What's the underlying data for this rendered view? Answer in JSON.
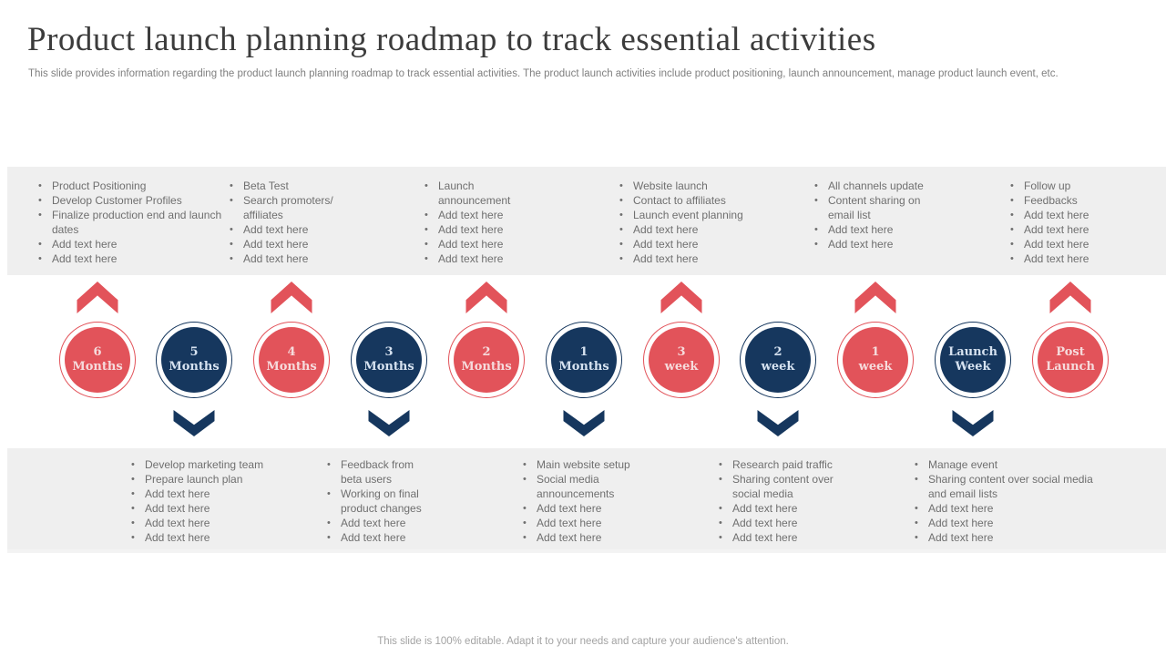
{
  "slide": {
    "title": "Product launch planning roadmap to track essential activities",
    "subtitle": "This slide provides information regarding the product launch planning roadmap to track essential activities. The product launch activities include product positioning, launch announcement, manage product launch event, etc.",
    "footer": "This slide is 100% editable. Adapt it to your needs and capture your audience's attention."
  },
  "colors": {
    "red": "#e2535a",
    "navy": "#16375e",
    "band_gray": "#efefef",
    "bullet_text": "#6f6f6f"
  },
  "top_band": {
    "columns": [
      {
        "items": [
          "Product Positioning",
          "Develop Customer Profiles",
          "Finalize production end and launch dates",
          "Add text here",
          "Add text here"
        ]
      },
      {
        "items": [
          "Beta Test",
          "Search promoters/ affiliates",
          "Add text here",
          "Add text here",
          "Add text here"
        ]
      },
      {
        "items": [
          "Launch announcement",
          "Add text here",
          "Add text here",
          "Add text here",
          "Add text here"
        ]
      },
      {
        "items": [
          "Website launch",
          "Contact to affiliates",
          "Launch event planning",
          "Add text here",
          "Add text here",
          "Add text here"
        ]
      },
      {
        "items": [
          "All channels update",
          "Content sharing on email list",
          "Add text here",
          "Add text here"
        ]
      },
      {
        "items": [
          "Follow up",
          "Feedbacks",
          "Add text here",
          "Add text here",
          "Add text here",
          "Add text here"
        ]
      }
    ]
  },
  "timeline": {
    "circles": [
      {
        "line1": "6",
        "line2": "Months",
        "tone": "red",
        "arrow": "up"
      },
      {
        "line1": "5",
        "line2": "Months",
        "tone": "navy",
        "arrow": "down"
      },
      {
        "line1": "4",
        "line2": "Months",
        "tone": "red",
        "arrow": "up"
      },
      {
        "line1": "3",
        "line2": "Months",
        "tone": "navy",
        "arrow": "down"
      },
      {
        "line1": "2",
        "line2": "Months",
        "tone": "red",
        "arrow": "up"
      },
      {
        "line1": "1",
        "line2": "Months",
        "tone": "navy",
        "arrow": "down"
      },
      {
        "line1": "3",
        "line2": "week",
        "tone": "red",
        "arrow": "up"
      },
      {
        "line1": "2",
        "line2": "week",
        "tone": "navy",
        "arrow": "down"
      },
      {
        "line1": "1",
        "line2": "week",
        "tone": "red",
        "arrow": "up"
      },
      {
        "line1": "Launch",
        "line2": "Week",
        "tone": "navy",
        "arrow": "down"
      },
      {
        "line1": "Post",
        "line2": "Launch",
        "tone": "red",
        "arrow": "up"
      }
    ]
  },
  "bottom_band": {
    "columns": [
      {
        "items": [
          "Develop marketing team",
          "Prepare launch plan",
          "Add text here",
          "Add text here",
          "Add text here",
          "Add text here"
        ]
      },
      {
        "items": [
          "Feedback from beta users",
          "Working on final product changes",
          "Add text here",
          "Add text here"
        ]
      },
      {
        "items": [
          "Main website setup",
          "Social media announcements",
          "Add text here",
          "Add text here",
          "Add text here"
        ]
      },
      {
        "items": [
          "Research paid traffic",
          "Sharing content over social media",
          "Add text here",
          "Add text here",
          "Add text here"
        ]
      },
      {
        "items": [
          "Manage event",
          "Sharing content over social media and email lists",
          "Add text here",
          "Add text here",
          "Add text here"
        ]
      }
    ]
  }
}
